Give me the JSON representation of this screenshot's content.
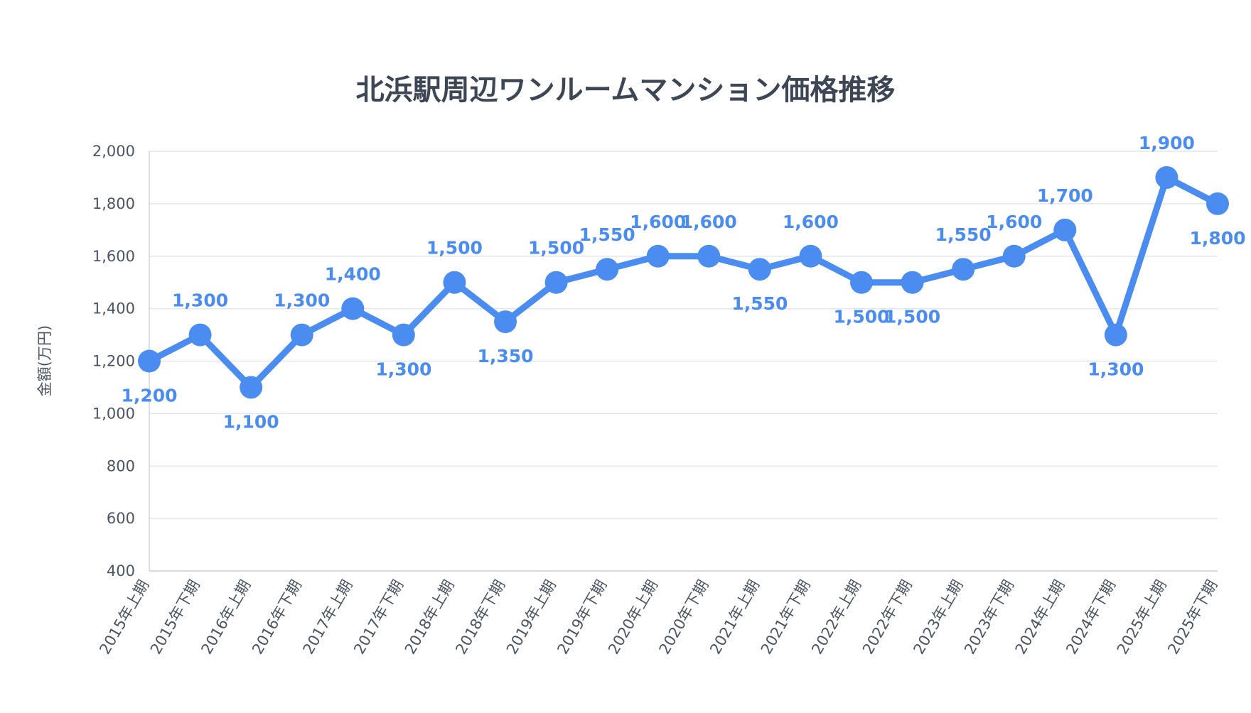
{
  "chart_data": {
    "type": "line",
    "title": "北浜駅周辺ワンルームマンション価格推移",
    "ylabel": "金額(万円)",
    "xlabel": "",
    "ylim": [
      400,
      2000
    ],
    "yticks": [
      "400",
      "600",
      "800",
      "1,000",
      "1,200",
      "1,400",
      "1,600",
      "1,800",
      "2,000"
    ],
    "grid": true,
    "color": "#4a8cf0",
    "categories": [
      "2015年上期",
      "2015年下期",
      "2016年上期",
      "2016年下期",
      "2017年上期",
      "2017年下期",
      "2018年上期",
      "2018年下期",
      "2019年上期",
      "2019年下期",
      "2020年上期",
      "2020年下期",
      "2021年上期",
      "2021年下期",
      "2022年上期",
      "2022年下期",
      "2023年上期",
      "2023年下期",
      "2024年上期",
      "2024年下期",
      "2025年上期",
      "2025年下期"
    ],
    "series": [
      {
        "values": [
          1200,
          1300,
          1100,
          1300,
          1400,
          1300,
          1500,
          1350,
          1500,
          1550,
          1600,
          1600,
          1550,
          1600,
          1500,
          1500,
          1550,
          1600,
          1700,
          1300,
          1900,
          1800
        ],
        "labels": [
          "1,200",
          "1,300",
          "1,100",
          "1,300",
          "1,400",
          "1,300",
          "1,500",
          "1,350",
          "1,500",
          "1,550",
          "1,600",
          "1,600",
          "1,550",
          "1,600",
          "1,500",
          "1,500",
          "1,550",
          "1,600",
          "1,700",
          "1,300",
          "1,900",
          "1,800"
        ]
      }
    ]
  }
}
